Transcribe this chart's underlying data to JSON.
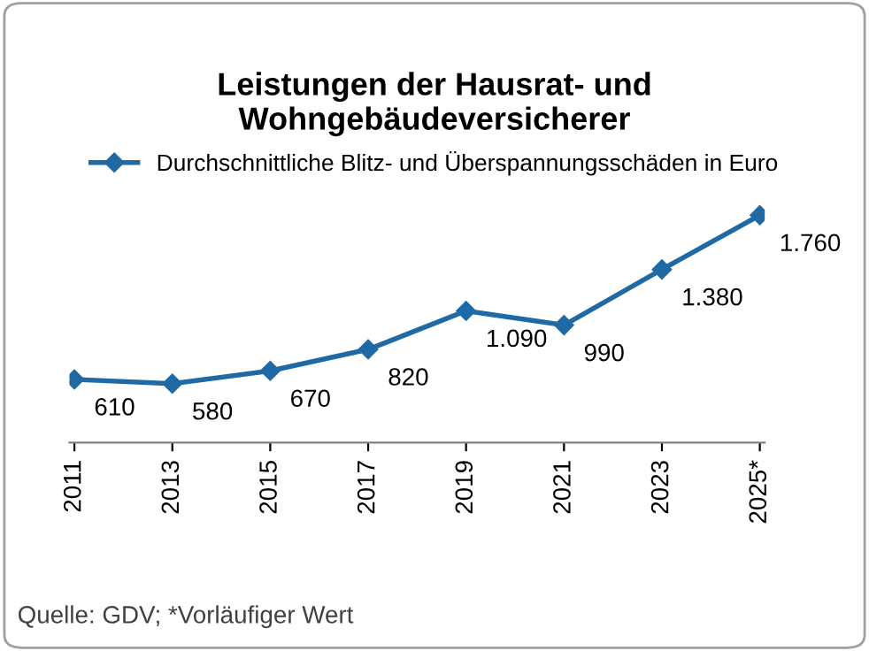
{
  "chart_data": {
    "type": "line",
    "title": "Leistungen der Hausrat- und\nWohngebäudeversicherer",
    "categories": [
      "2011",
      "2013",
      "2015",
      "2017",
      "2019",
      "2021",
      "2023",
      "2025*"
    ],
    "series": [
      {
        "name": "Durchschnittliche Blitz- und Überspannungsschäden in Euro",
        "color": "#1f6aa5",
        "values": [
          610,
          580,
          670,
          820,
          1090,
          990,
          1380,
          1760
        ],
        "value_labels": [
          "610",
          "580",
          "670",
          "820",
          "1.090",
          "990",
          "1.380",
          "1.760"
        ]
      }
    ],
    "marker": "diamond",
    "line_style": "solid",
    "grid": false,
    "legend": "top",
    "tick_labels": "x",
    "annotations": [
      "Quelle: GDV; *Vorläufiger Wert"
    ]
  }
}
